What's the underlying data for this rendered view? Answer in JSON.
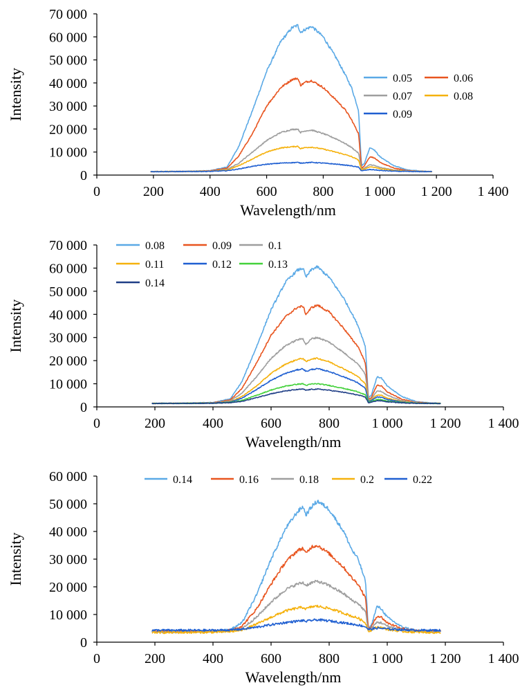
{
  "chart_data": [
    {
      "type": "line",
      "xlabel": "Wavelength/nm",
      "ylabel": "Intensity",
      "xlim": [
        0,
        1400
      ],
      "ylim": [
        0,
        70000
      ],
      "xticks": [
        "0",
        "200",
        "400",
        "600",
        "800",
        "1 000",
        "1 200",
        "1 400"
      ],
      "yticks": [
        "0",
        "10 000",
        "20 000",
        "30 000",
        "40 000",
        "50 000",
        "60 000",
        "70 000"
      ],
      "legend": "right, two columns",
      "x": [
        190,
        300,
        400,
        460,
        500,
        550,
        600,
        650,
        690,
        710,
        720,
        740,
        760,
        800,
        850,
        880,
        900,
        925,
        935,
        945,
        965,
        980,
        1000,
        1050,
        1100,
        1150,
        1185
      ],
      "series": [
        {
          "name": "0.05",
          "color": "#5aa9e6",
          "values": [
            1500,
            1600,
            1900,
            3500,
            12000,
            28000,
            45000,
            58000,
            64000,
            65000,
            62000,
            63500,
            64500,
            60000,
            50000,
            43000,
            38000,
            28000,
            4000,
            5000,
            12000,
            11000,
            8000,
            4000,
            2200,
            1700,
            1500
          ]
        },
        {
          "name": "0.06",
          "color": "#e8541e",
          "values": [
            1500,
            1550,
            1800,
            3000,
            8000,
            18000,
            30000,
            38000,
            41500,
            42000,
            39000,
            40500,
            41000,
            38000,
            32000,
            28000,
            24000,
            18000,
            3000,
            4000,
            8000,
            7500,
            5500,
            3000,
            1900,
            1600,
            1500
          ]
        },
        {
          "name": "0.07",
          "color": "#9e9e9e",
          "values": [
            1500,
            1550,
            1700,
            2500,
            5000,
            10000,
            15000,
            18500,
            19800,
            20000,
            18500,
            19300,
            19500,
            18000,
            15500,
            13500,
            12000,
            9500,
            2500,
            3000,
            4500,
            4200,
            3300,
            2200,
            1700,
            1600,
            1500
          ]
        },
        {
          "name": "0.08",
          "color": "#f5b10c",
          "values": [
            1500,
            1550,
            1650,
            2200,
            4000,
            7000,
            10000,
            11800,
            12300,
            12500,
            11500,
            12000,
            12100,
            11300,
            9800,
            8800,
            8000,
            6500,
            2300,
            2600,
            3600,
            3400,
            2800,
            2000,
            1650,
            1550,
            1500
          ]
        },
        {
          "name": "0.09",
          "color": "#1f5fd1",
          "values": [
            1500,
            1520,
            1600,
            1900,
            2600,
            3800,
            4700,
            5200,
            5400,
            5500,
            5200,
            5400,
            5500,
            5200,
            4700,
            4300,
            4000,
            3400,
            1900,
            2000,
            2400,
            2300,
            2000,
            1700,
            1550,
            1500,
            1500
          ]
        }
      ]
    },
    {
      "type": "line",
      "xlabel": "Wavelength/nm",
      "ylabel": "Intensity",
      "xlim": [
        0,
        1400
      ],
      "ylim": [
        0,
        70000
      ],
      "xticks": [
        "0",
        "200",
        "400",
        "600",
        "800",
        "1 000",
        "1 200",
        "1 400"
      ],
      "yticks": [
        "0",
        "10 000",
        "20 000",
        "30 000",
        "40 000",
        "50 000",
        "60 000",
        "70 000"
      ],
      "legend": "top-left, three columns",
      "x": [
        190,
        300,
        400,
        460,
        500,
        550,
        600,
        650,
        690,
        710,
        720,
        740,
        760,
        800,
        850,
        880,
        900,
        925,
        935,
        945,
        965,
        980,
        1000,
        1050,
        1100,
        1150,
        1185
      ],
      "series": [
        {
          "name": "0.08",
          "color": "#5aa9e6",
          "values": [
            1500,
            1600,
            1900,
            3500,
            11000,
            26000,
            42000,
            54000,
            59000,
            60000,
            56000,
            59500,
            60500,
            56000,
            47000,
            40000,
            35000,
            26000,
            4000,
            5000,
            13000,
            12500,
            9000,
            4500,
            2300,
            1700,
            1500
          ]
        },
        {
          "name": "0.09",
          "color": "#e8541e",
          "values": [
            1500,
            1550,
            1800,
            3000,
            8000,
            19000,
            31000,
            39000,
            43000,
            43500,
            40000,
            43000,
            44000,
            41000,
            34000,
            29000,
            26000,
            19000,
            3200,
            4000,
            9500,
            9000,
            6500,
            3300,
            2000,
            1600,
            1500
          ]
        },
        {
          "name": "0.1",
          "color": "#9e9e9e",
          "values": [
            1500,
            1550,
            1750,
            2600,
            6000,
            13000,
            21000,
            26500,
            29000,
            29500,
            27000,
            29500,
            30000,
            28000,
            23500,
            20500,
            18500,
            14000,
            2800,
            3400,
            7000,
            6700,
            5000,
            2700,
            1800,
            1600,
            1500
          ]
        },
        {
          "name": "0.11",
          "color": "#f5b10c",
          "values": [
            1500,
            1550,
            1700,
            2300,
            4500,
            9000,
            14500,
            18500,
            20500,
            21000,
            19500,
            20800,
            21000,
            19500,
            16500,
            14500,
            13000,
            10000,
            2500,
            3000,
            5200,
            5000,
            3800,
            2300,
            1700,
            1550,
            1500
          ]
        },
        {
          "name": "0.12",
          "color": "#1f5fd1",
          "values": [
            1500,
            1530,
            1650,
            2100,
            3800,
            7500,
            11500,
            14500,
            16000,
            16500,
            15300,
            16200,
            16500,
            15300,
            13000,
            11500,
            10300,
            8000,
            2300,
            2700,
            4300,
            4100,
            3200,
            2100,
            1650,
            1550,
            1500
          ]
        },
        {
          "name": "0.13",
          "color": "#43d13a",
          "values": [
            1500,
            1520,
            1600,
            1900,
            2800,
            5000,
            7300,
            9000,
            9800,
            10000,
            9300,
            9900,
            10000,
            9300,
            8000,
            7100,
            6500,
            5200,
            2000,
            2300,
            3200,
            3100,
            2500,
            1900,
            1600,
            1520,
            1500
          ]
        },
        {
          "name": "0.14",
          "color": "#1f3e86",
          "values": [
            1500,
            1510,
            1580,
            1800,
            2400,
            4000,
            5700,
            6900,
            7500,
            7700,
            7200,
            7600,
            7700,
            7200,
            6300,
            5600,
            5100,
            4200,
            1800,
            2000,
            2700,
            2600,
            2200,
            1750,
            1550,
            1510,
            1500
          ]
        }
      ]
    },
    {
      "type": "line",
      "xlabel": "Wavelength/nm",
      "ylabel": "Intensity",
      "xlim": [
        0,
        1400
      ],
      "ylim": [
        0,
        60000
      ],
      "xticks": [
        "0",
        "200",
        "400",
        "600",
        "800",
        "1 000",
        "1 200",
        "1 400"
      ],
      "yticks": [
        "0",
        "10 000",
        "20 000",
        "30 000",
        "40 000",
        "50 000",
        "60 000"
      ],
      "legend": "top, one row",
      "x": [
        190,
        300,
        400,
        460,
        500,
        550,
        600,
        650,
        690,
        710,
        720,
        740,
        760,
        800,
        850,
        880,
        900,
        925,
        935,
        945,
        965,
        980,
        1000,
        1050,
        1100,
        1150,
        1185
      ],
      "series": [
        {
          "name": "0.14",
          "color": "#5aa9e6",
          "values": [
            4000,
            4000,
            4000,
            4500,
            7000,
            17000,
            30000,
            41000,
            47000,
            49000,
            46000,
            49000,
            51000,
            48000,
            40000,
            33000,
            30000,
            22000,
            5000,
            6000,
            13000,
            12000,
            9000,
            5500,
            4200,
            4000,
            4000
          ]
        },
        {
          "name": "0.16",
          "color": "#e8541e",
          "values": [
            4000,
            4000,
            4000,
            4300,
            5800,
            12000,
            21000,
            29000,
            33000,
            34000,
            32000,
            34500,
            35000,
            32000,
            27000,
            23000,
            21000,
            16000,
            4800,
            5500,
            9500,
            9000,
            7000,
            5000,
            4100,
            4000,
            4000
          ]
        },
        {
          "name": "0.18",
          "color": "#9e9e9e",
          "values": [
            3700,
            3700,
            3800,
            4000,
            5000,
            9000,
            14500,
            19000,
            21000,
            21500,
            20500,
            21500,
            22000,
            20500,
            17500,
            15000,
            14000,
            11000,
            4500,
            5000,
            7200,
            7000,
            5800,
            4500,
            3900,
            3700,
            3700
          ]
        },
        {
          "name": "0.2",
          "color": "#f5b10c",
          "values": [
            3500,
            3500,
            3600,
            3800,
            4400,
            6500,
            9000,
            11300,
            12300,
            12600,
            12000,
            12800,
            13000,
            12200,
            10500,
            9300,
            8700,
            7000,
            4000,
            4300,
            5500,
            5300,
            4600,
            3900,
            3600,
            3500,
            3500
          ]
        },
        {
          "name": "0.22",
          "color": "#1f5fd1",
          "values": [
            4300,
            4300,
            4300,
            4400,
            4700,
            5400,
            6300,
            7100,
            7600,
            7800,
            7500,
            7900,
            8100,
            7700,
            7000,
            6500,
            6200,
            5600,
            4600,
            4700,
            5100,
            5000,
            4800,
            4500,
            4300,
            4300,
            4300
          ]
        }
      ]
    }
  ]
}
